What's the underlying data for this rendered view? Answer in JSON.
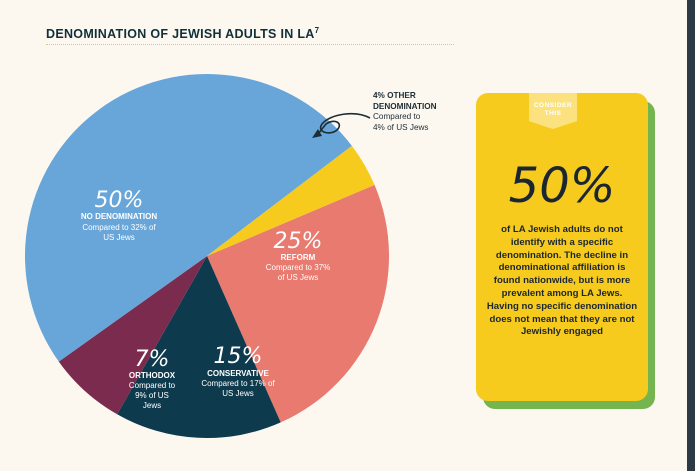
{
  "header": {
    "title": "DENOMINATION OF JEWISH ADULTS IN LA",
    "footnote": "7"
  },
  "chart_data": {
    "type": "pie",
    "title": "DENOMINATION OF JEWISH ADULTS IN LA",
    "slices": [
      {
        "key": "none",
        "percent_label": "50%",
        "value": 50,
        "label": "NO DENOMINATION",
        "compare": "Compared to 32% of US Jews",
        "color": "#68a6d9"
      },
      {
        "key": "other",
        "percent_label": "4%",
        "value": 4,
        "label": "OTHER DENOMINATION",
        "compare": "Compared to 4% of US Jews",
        "color": "#f6cb1d"
      },
      {
        "key": "reform",
        "percent_label": "25%",
        "value": 25,
        "label": "REFORM",
        "compare": "Compared to 37% of US Jews",
        "color": "#e87a6f"
      },
      {
        "key": "conservative",
        "percent_label": "15%",
        "value": 15,
        "label": "CONSERVATIVE",
        "compare": "Compared to 17% of US Jews",
        "color": "#0e3a4d"
      },
      {
        "key": "orthodox",
        "percent_label": "7%",
        "value": 7,
        "label": "ORTHODOX",
        "compare": "Compared to 9% of US Jews",
        "color": "#7b2b4e"
      }
    ]
  },
  "callout": {
    "line1": "4% OTHER",
    "line2": "DENOMINATION",
    "compare_line1": "Compared to",
    "compare_line2": "4% of US Jews"
  },
  "card": {
    "tab_line1": "CONSIDER",
    "tab_line2": "THIS",
    "big": "50%",
    "text": "of LA Jewish adults do not identify with a specific denomination. The decline in denominational affiliation is found nationwide, but is more prevalent among LA Jews. Having no specific denomination does not mean that they are not Jewishly engaged"
  }
}
